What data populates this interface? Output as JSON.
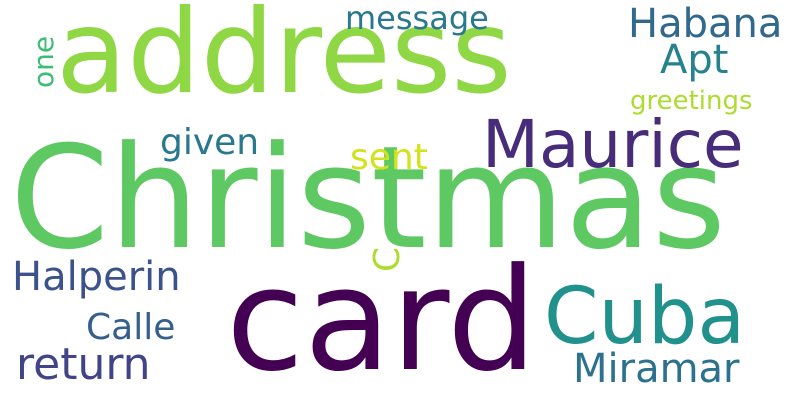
{
  "word_cloud": {
    "background": "#ffffff",
    "words": {
      "christmas": {
        "text": "Christmas",
        "color": "#5ec962"
      },
      "address": {
        "text": "address",
        "color": "#8fd744"
      },
      "card": {
        "text": "card",
        "color": "#440154"
      },
      "maurice": {
        "text": "Maurice",
        "color": "#472c7a"
      },
      "cuba": {
        "text": "Cuba",
        "color": "#21918c"
      },
      "halperin": {
        "text": "Halperin",
        "color": "#3b528b"
      },
      "calle": {
        "text": "Calle",
        "color": "#355f8d"
      },
      "return": {
        "text": "return",
        "color": "#414487"
      },
      "miramar": {
        "text": "Miramar",
        "color": "#2c728e"
      },
      "habana": {
        "text": "Habana",
        "color": "#31688e"
      },
      "apt": {
        "text": "Apt",
        "color": "#26828e"
      },
      "message": {
        "text": "message",
        "color": "#2a788e"
      },
      "given": {
        "text": "given",
        "color": "#2a788e"
      },
      "sent": {
        "text": "sent",
        "color": "#d2e21b"
      },
      "greetings": {
        "text": "greetings",
        "color": "#addc30"
      },
      "c": {
        "text": "C",
        "color": "#addc30"
      },
      "one": {
        "text": "one",
        "color": "#3dbc74"
      }
    }
  }
}
